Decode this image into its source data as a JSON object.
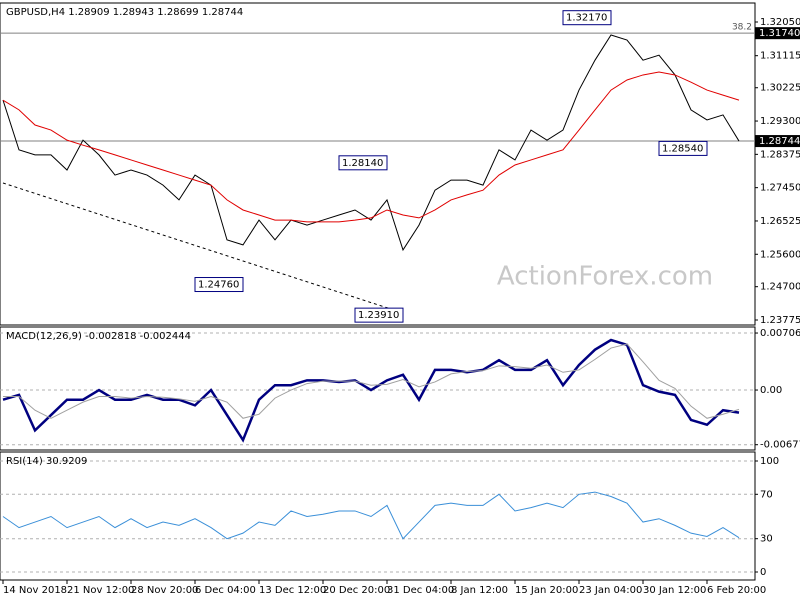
{
  "chart_data": [
    {
      "type": "line",
      "title": "GBPUSD,H4  1.28909 1.28943 1.28699 1.28744",
      "series": [
        {
          "color": "#000000",
          "values": [
            1.2988,
            1.285,
            1.2836,
            1.2836,
            1.2794,
            1.2877,
            1.2836,
            1.278,
            1.2794,
            1.278,
            1.2752,
            1.2711,
            1.278,
            1.2752,
            1.26,
            1.2586,
            1.2655,
            1.26,
            1.2655,
            1.2641,
            1.2655,
            1.2669,
            1.2683,
            1.2655,
            1.2711,
            1.2572,
            1.2641,
            1.2738,
            1.2766,
            1.2766,
            1.2752,
            1.285,
            1.2822,
            1.2905,
            1.2877,
            1.2905,
            1.3016,
            1.3099,
            1.3169,
            1.3155,
            1.3099,
            1.3113,
            1.3058,
            1.2961,
            1.2933,
            1.2947,
            1.28744
          ]
        },
        {
          "color": "#e00000",
          "values": [
            1.2988,
            1.2961,
            1.2919,
            1.2905,
            1.2877,
            1.2863,
            1.285,
            1.2836,
            1.2822,
            1.2808,
            1.2794,
            1.278,
            1.2766,
            1.2752,
            1.2711,
            1.2683,
            1.2669,
            1.2655,
            1.2655,
            1.265,
            1.265,
            1.265,
            1.2655,
            1.2661,
            1.2683,
            1.2669,
            1.2661,
            1.2683,
            1.2711,
            1.2725,
            1.2738,
            1.278,
            1.2808,
            1.2822,
            1.2836,
            1.285,
            1.2905,
            1.2961,
            1.3016,
            1.3044,
            1.3058,
            1.3066,
            1.3058,
            1.3038,
            1.3016,
            1.3002,
            1.2988
          ]
        }
      ],
      "ylim": [
        1.23636,
        1.32578
      ],
      "yticks": [
        {
          "value": 1.3205,
          "label": "1.32050"
        },
        {
          "value": 1.31115,
          "label": "1.31115"
        },
        {
          "value": 1.30225,
          "label": "1.30225"
        },
        {
          "value": 1.293,
          "label": "1.29300"
        },
        {
          "value": 1.28375,
          "label": "1.28375"
        },
        {
          "value": 1.2745,
          "label": "1.27450"
        },
        {
          "value": 1.26525,
          "label": "1.26525"
        },
        {
          "value": 1.256,
          "label": "1.25600"
        },
        {
          "value": 1.247,
          "label": "1.24700"
        },
        {
          "value": 1.23775,
          "label": "1.23775"
        }
      ],
      "annotations": [
        {
          "x": 38,
          "value": 1.3217,
          "label": "1.32170"
        },
        {
          "x": 24,
          "value": 1.2814,
          "label": "1.28140"
        },
        {
          "x": 15,
          "value": 1.2476,
          "label": "1.24760"
        },
        {
          "x": 25,
          "value": 1.2391,
          "label": "1.23910"
        },
        {
          "x": 44,
          "value": 1.2854,
          "label": "1.28540"
        }
      ],
      "levels": [
        {
          "name": "38.2",
          "value": 1.3174,
          "label": "1.31740"
        },
        {
          "value": 1.28744,
          "label": "1.28744"
        }
      ],
      "watermark": "ActionForex.com"
    },
    {
      "type": "line",
      "title": "MACD(12,26,9) -0.002818 -0.002444",
      "series": [
        {
          "color": "#000080",
          "values": [
            -0.0012,
            -0.0006,
            -0.005,
            -0.0031,
            -0.0012,
            -0.0012,
            0,
            -0.0012,
            -0.0012,
            -0.0006,
            -0.0012,
            -0.0012,
            -0.0019,
            0,
            -0.0031,
            -0.0062,
            -0.0012,
            0.0006,
            0.0006,
            0.0012,
            0.0012,
            0.001,
            0.0012,
            0,
            0.0012,
            0.0019,
            -0.0012,
            0.0025,
            0.0025,
            0.0022,
            0.0025,
            0.0037,
            0.0025,
            0.0025,
            0.0037,
            0.0006,
            0.0031,
            0.005,
            0.0062,
            0.0056,
            0.0006,
            -0.0002,
            -0.0006,
            -0.0037,
            -0.0043,
            -0.0025,
            -0.0028
          ]
        },
        {
          "color": "#a0a0a0",
          "values": [
            -0.0008,
            -0.0008,
            -0.0025,
            -0.0035,
            -0.0025,
            -0.0015,
            -0.0008,
            -0.0008,
            -0.001,
            -0.0008,
            -0.0009,
            -0.0011,
            -0.0014,
            -0.0008,
            -0.0015,
            -0.0035,
            -0.003,
            -0.001,
            0,
            0.0008,
            0.0011,
            0.0011,
            0.0011,
            0.0006,
            0.0007,
            0.0013,
            0.0004,
            0.001,
            0.002,
            0.0023,
            0.0024,
            0.003,
            0.0029,
            0.0027,
            0.0031,
            0.0022,
            0.0025,
            0.0038,
            0.0052,
            0.0057,
            0.0035,
            0.0012,
            0.0002,
            -0.002,
            -0.0035,
            -0.003,
            -0.0024
          ]
        }
      ],
      "ylim": [
        -0.00743,
        0.00781
      ],
      "yticks": [
        0.007063,
        {
          "value": 0,
          "label": "0.00"
        },
        -0.006774
      ],
      "grid": true
    },
    {
      "type": "line",
      "title": "RSI(14) 30.9209",
      "categories": [
        "14 Nov 2018",
        null,
        null,
        null,
        "21 Nov 12:00",
        null,
        null,
        null,
        "28 Nov 20:00",
        null,
        null,
        null,
        "6 Dec 04:00",
        null,
        null,
        null,
        "13 Dec 12:00",
        null,
        null,
        null,
        "20 Dec 20:00",
        null,
        null,
        null,
        "31 Dec 04:00",
        null,
        null,
        null,
        "8 Jan 12:00",
        null,
        null,
        null,
        "15 Jan 20:00",
        null,
        null,
        null,
        "23 Jan 04:00",
        null,
        null,
        null,
        "30 Jan 12:00",
        null,
        null,
        null,
        "6 Feb 20:00",
        null,
        null
      ],
      "series": [
        {
          "color": "#3a8fd8",
          "values": [
            50,
            40,
            45,
            50,
            40,
            45,
            50,
            40,
            48,
            40,
            45,
            42,
            48,
            40,
            30,
            35,
            45,
            42,
            55,
            50,
            52,
            55,
            55,
            50,
            60,
            30,
            45,
            60,
            62,
            60,
            60,
            70,
            55,
            58,
            62,
            58,
            70,
            72,
            68,
            62,
            45,
            48,
            42,
            35,
            32,
            40,
            30.9209
          ]
        }
      ],
      "ylim": [
        -7.2,
        108.1
      ],
      "yticks": [
        100,
        70,
        30,
        0
      ],
      "grid": true
    }
  ]
}
